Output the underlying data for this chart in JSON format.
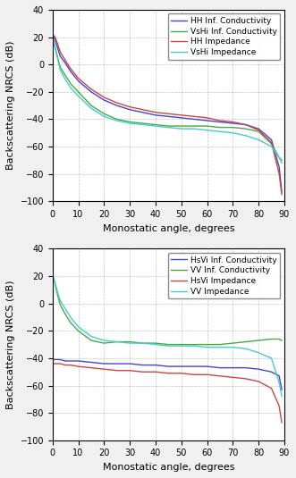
{
  "top": {
    "title": "",
    "ylabel": "Backscattering NRCS (dB)",
    "xlabel": "Monostatic angle, degrees",
    "xlim": [
      0,
      90
    ],
    "ylim": [
      -100,
      40
    ],
    "yticks": [
      -100,
      -80,
      -60,
      -40,
      -20,
      0,
      20,
      40
    ],
    "xticks": [
      0,
      10,
      20,
      30,
      40,
      50,
      60,
      70,
      80,
      90
    ],
    "legend": [
      "HH Inf. Conductivity",
      "VsHi Inf. Conductivity",
      "HH Impedance",
      "VsHi Impedance"
    ],
    "colors": [
      "#4444cc",
      "#44aa44",
      "#cc4444",
      "#44cccc"
    ],
    "series": {
      "HH_IC": [
        [
          0,
          1,
          2,
          3,
          5,
          7,
          10,
          15,
          20,
          25,
          30,
          35,
          40,
          45,
          50,
          55,
          60,
          65,
          70,
          75,
          80,
          85,
          88,
          89
        ],
        [
          22,
          18,
          12,
          6,
          1,
          -5,
          -12,
          -20,
          -26,
          -30,
          -33,
          -35,
          -37,
          -38,
          -39,
          -40,
          -41,
          -42,
          -43,
          -44,
          -47,
          -55,
          -75,
          -93
        ]
      ],
      "VsHi_IC": [
        [
          0,
          1,
          2,
          3,
          5,
          7,
          10,
          15,
          20,
          25,
          30,
          35,
          40,
          45,
          50,
          55,
          60,
          65,
          70,
          75,
          80,
          85,
          88,
          89
        ],
        [
          20,
          13,
          5,
          -2,
          -8,
          -14,
          -20,
          -30,
          -36,
          -40,
          -42,
          -43,
          -44,
          -45,
          -45,
          -45,
          -45,
          -46,
          -46,
          -47,
          -49,
          -58,
          -68,
          -70
        ]
      ],
      "HH_IMP": [
        [
          0,
          1,
          2,
          3,
          5,
          7,
          10,
          15,
          20,
          25,
          30,
          35,
          40,
          45,
          50,
          55,
          60,
          65,
          70,
          75,
          80,
          85,
          88,
          89
        ],
        [
          22,
          20,
          15,
          9,
          3,
          -3,
          -10,
          -18,
          -24,
          -28,
          -31,
          -33,
          -35,
          -36,
          -37,
          -38,
          -39,
          -41,
          -42,
          -44,
          -48,
          -57,
          -80,
          -95
        ]
      ],
      "VsHi_IMP": [
        [
          0,
          1,
          2,
          3,
          5,
          7,
          10,
          15,
          20,
          25,
          30,
          35,
          40,
          45,
          50,
          55,
          60,
          65,
          70,
          75,
          80,
          85,
          88,
          89
        ],
        [
          20,
          12,
          4,
          -4,
          -11,
          -17,
          -23,
          -32,
          -38,
          -41,
          -43,
          -44,
          -45,
          -46,
          -47,
          -47,
          -48,
          -49,
          -50,
          -52,
          -55,
          -60,
          -68,
          -72
        ]
      ]
    }
  },
  "bottom": {
    "title": "",
    "ylabel": "Backscattering NRCS (dB)",
    "xlabel": "Monostatic angle, degrees",
    "xlim": [
      0,
      90
    ],
    "ylim": [
      -100,
      40
    ],
    "yticks": [
      -100,
      -80,
      -60,
      -40,
      -20,
      0,
      20,
      40
    ],
    "xticks": [
      0,
      10,
      20,
      30,
      40,
      50,
      60,
      70,
      80,
      90
    ],
    "legend": [
      "HsVi Inf. Conductivity",
      "VV Inf. Conductivity",
      "HsVi Impedance",
      "VV Impedance"
    ],
    "colors": [
      "#4444cc",
      "#44aa44",
      "#cc4444",
      "#44cccc"
    ],
    "series": {
      "HsVi_IC": [
        [
          0,
          1,
          2,
          3,
          5,
          7,
          10,
          15,
          20,
          25,
          30,
          35,
          40,
          45,
          50,
          55,
          60,
          65,
          70,
          75,
          80,
          85,
          88,
          89
        ],
        [
          -41,
          -41,
          -41,
          -41,
          -42,
          -42,
          -42,
          -43,
          -44,
          -44,
          -44,
          -45,
          -45,
          -46,
          -46,
          -46,
          -46,
          -47,
          -47,
          -47,
          -48,
          -50,
          -53,
          -63
        ]
      ],
      "VV_IC": [
        [
          0,
          1,
          2,
          3,
          5,
          7,
          10,
          15,
          20,
          25,
          30,
          35,
          40,
          45,
          50,
          55,
          60,
          65,
          70,
          75,
          80,
          85,
          88,
          89
        ],
        [
          21,
          14,
          6,
          -1,
          -8,
          -14,
          -20,
          -27,
          -29,
          -28,
          -28,
          -29,
          -29,
          -30,
          -30,
          -30,
          -30,
          -30,
          -29,
          -28,
          -27,
          -26,
          -26,
          -27
        ]
      ],
      "HsVi_IMP": [
        [
          0,
          1,
          2,
          3,
          5,
          7,
          10,
          15,
          20,
          25,
          30,
          35,
          40,
          45,
          50,
          55,
          60,
          65,
          70,
          75,
          80,
          85,
          88,
          89
        ],
        [
          -44,
          -44,
          -44,
          -44,
          -45,
          -45,
          -46,
          -47,
          -48,
          -49,
          -49,
          -50,
          -50,
          -51,
          -51,
          -52,
          -52,
          -53,
          -54,
          -55,
          -57,
          -62,
          -75,
          -87
        ]
      ],
      "VV_IMP": [
        [
          0,
          1,
          2,
          3,
          5,
          7,
          10,
          15,
          20,
          25,
          30,
          35,
          40,
          45,
          50,
          55,
          60,
          65,
          70,
          75,
          80,
          85,
          88,
          89
        ],
        [
          21,
          15,
          8,
          2,
          -4,
          -10,
          -17,
          -24,
          -27,
          -28,
          -29,
          -29,
          -30,
          -31,
          -31,
          -31,
          -32,
          -32,
          -32,
          -33,
          -36,
          -40,
          -58,
          -68
        ]
      ]
    }
  },
  "fig_bg": "#f0f0f0",
  "axes_bg": "#ffffff",
  "grid_color": "#aaaaaa",
  "grid_linestyle": "--",
  "grid_alpha": 0.7,
  "tick_fontsize": 7,
  "label_fontsize": 8,
  "legend_fontsize": 6.5,
  "linewidth": 1.0
}
